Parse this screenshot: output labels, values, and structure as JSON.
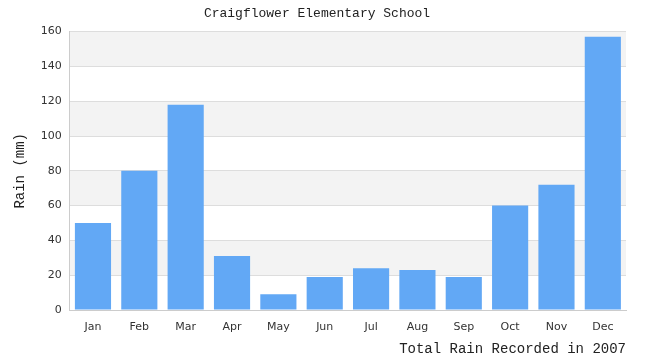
{
  "chart_data": {
    "type": "bar",
    "title": "Craigflower Elementary School",
    "x_label": "Total Rain Recorded in 2007",
    "y_label": "Rain (mm)",
    "categories": [
      "Jan",
      "Feb",
      "Mar",
      "Apr",
      "May",
      "Jun",
      "Jul",
      "Aug",
      "Sep",
      "Oct",
      "Nov",
      "Dec"
    ],
    "values": [
      50,
      80,
      118,
      31,
      9,
      19,
      24,
      23,
      19,
      60,
      72,
      157
    ],
    "color": "#62a8f5",
    "ylim": [
      0,
      160
    ],
    "yticks": [
      0,
      20,
      40,
      60,
      80,
      100,
      120,
      140,
      160
    ],
    "grid": true
  }
}
